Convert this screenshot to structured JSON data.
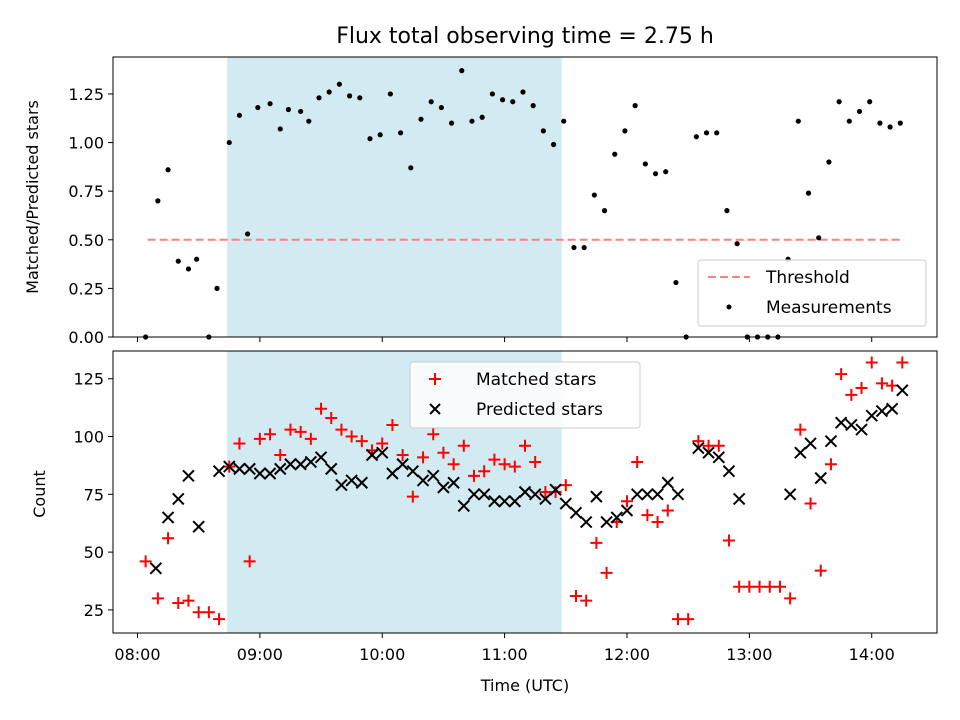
{
  "chart_data": [
    {
      "type": "scatter",
      "title": "Flux total observing time = 2.75 h",
      "ylabel": "Matched/Predicted stars",
      "xlim": [
        "07:48",
        "14:32"
      ],
      "ylim": [
        0.0,
        1.44
      ],
      "yticks": [
        "0.00",
        "0.25",
        "0.50",
        "0.75",
        "1.00",
        "1.25"
      ],
      "grid": false,
      "legend_position": "lower-right",
      "shaded_region": {
        "start": "08:44",
        "end": "11:28",
        "color": "#add8e6"
      },
      "threshold": {
        "name": "Threshold",
        "value": 0.5,
        "x_start": "08:05",
        "x_end": "14:15",
        "color": "#ff8080"
      },
      "series": [
        {
          "name": "Measurements",
          "marker": "dot",
          "color": "#000000",
          "points": [
            [
              "08:04",
              0.0
            ],
            [
              "08:10",
              0.7
            ],
            [
              "08:15",
              0.86
            ],
            [
              "08:20",
              0.39
            ],
            [
              "08:25",
              0.35
            ],
            [
              "08:29",
              0.4
            ],
            [
              "08:35",
              0.0
            ],
            [
              "08:39",
              0.25
            ],
            [
              "08:45",
              1.0
            ],
            [
              "08:50",
              1.14
            ],
            [
              "08:54",
              0.53
            ],
            [
              "08:59",
              1.18
            ],
            [
              "09:05",
              1.2
            ],
            [
              "09:10",
              1.07
            ],
            [
              "09:14",
              1.17
            ],
            [
              "09:20",
              1.16
            ],
            [
              "09:24",
              1.11
            ],
            [
              "09:29",
              1.23
            ],
            [
              "09:34",
              1.26
            ],
            [
              "09:39",
              1.3
            ],
            [
              "09:44",
              1.24
            ],
            [
              "09:49",
              1.23
            ],
            [
              "09:54",
              1.02
            ],
            [
              "09:59",
              1.04
            ],
            [
              "10:04",
              1.25
            ],
            [
              "10:09",
              1.05
            ],
            [
              "10:14",
              0.87
            ],
            [
              "10:19",
              1.12
            ],
            [
              "10:24",
              1.21
            ],
            [
              "10:29",
              1.18
            ],
            [
              "10:34",
              1.1
            ],
            [
              "10:39",
              1.37
            ],
            [
              "10:44",
              1.11
            ],
            [
              "10:49",
              1.13
            ],
            [
              "10:54",
              1.25
            ],
            [
              "10:59",
              1.22
            ],
            [
              "11:04",
              1.21
            ],
            [
              "11:09",
              1.26
            ],
            [
              "11:14",
              1.19
            ],
            [
              "11:19",
              1.06
            ],
            [
              "11:24",
              0.99
            ],
            [
              "11:29",
              1.11
            ],
            [
              "11:34",
              0.46
            ],
            [
              "11:39",
              0.46
            ],
            [
              "11:44",
              0.73
            ],
            [
              "11:49",
              0.65
            ],
            [
              "11:54",
              0.94
            ],
            [
              "11:59",
              1.06
            ],
            [
              "12:04",
              1.19
            ],
            [
              "12:09",
              0.89
            ],
            [
              "12:14",
              0.84
            ],
            [
              "12:19",
              0.85
            ],
            [
              "12:24",
              0.28
            ],
            [
              "12:29",
              0.0
            ],
            [
              "12:34",
              1.03
            ],
            [
              "12:39",
              1.05
            ],
            [
              "12:44",
              1.05
            ],
            [
              "12:49",
              0.65
            ],
            [
              "12:54",
              0.48
            ],
            [
              "12:59",
              0.0
            ],
            [
              "13:04",
              0.0
            ],
            [
              "13:09",
              0.0
            ],
            [
              "13:14",
              0.0
            ],
            [
              "13:19",
              0.4
            ],
            [
              "13:24",
              1.11
            ],
            [
              "13:29",
              0.74
            ],
            [
              "13:34",
              0.51
            ],
            [
              "13:39",
              0.9
            ],
            [
              "13:44",
              1.21
            ],
            [
              "13:49",
              1.11
            ],
            [
              "13:54",
              1.16
            ],
            [
              "13:59",
              1.21
            ],
            [
              "14:04",
              1.1
            ],
            [
              "14:09",
              1.08
            ],
            [
              "14:14",
              1.1
            ]
          ]
        }
      ]
    },
    {
      "type": "scatter",
      "xlabel": "Time (UTC)",
      "ylabel": "Count",
      "xlim": [
        "07:48",
        "14:32"
      ],
      "xticks": [
        "08:00",
        "09:00",
        "10:00",
        "11:00",
        "12:00",
        "13:00",
        "14:00"
      ],
      "ylim": [
        15,
        137
      ],
      "yticks": [
        25,
        50,
        75,
        100,
        125
      ],
      "grid": false,
      "legend_position": "upper-center",
      "shaded_region": {
        "start": "08:44",
        "end": "11:28",
        "color": "#add8e6"
      },
      "series": [
        {
          "name": "Matched stars",
          "marker": "plus",
          "color": "#ff0000",
          "points": [
            [
              "08:04",
              46
            ],
            [
              "08:10",
              30
            ],
            [
              "08:15",
              56
            ],
            [
              "08:20",
              28
            ],
            [
              "08:25",
              29
            ],
            [
              "08:30",
              24
            ],
            [
              "08:35",
              24
            ],
            [
              "08:40",
              21
            ],
            [
              "08:45",
              87
            ],
            [
              "08:50",
              97
            ],
            [
              "08:55",
              46
            ],
            [
              "09:00",
              99
            ],
            [
              "09:05",
              101
            ],
            [
              "09:10",
              92
            ],
            [
              "09:15",
              103
            ],
            [
              "09:20",
              102
            ],
            [
              "09:25",
              99
            ],
            [
              "09:30",
              112
            ],
            [
              "09:35",
              108
            ],
            [
              "09:40",
              103
            ],
            [
              "09:45",
              100
            ],
            [
              "09:50",
              98
            ],
            [
              "09:55",
              94
            ],
            [
              "10:00",
              97
            ],
            [
              "10:05",
              105
            ],
            [
              "10:10",
              92
            ],
            [
              "10:15",
              74
            ],
            [
              "10:20",
              91
            ],
            [
              "10:25",
              101
            ],
            [
              "10:30",
              93
            ],
            [
              "10:35",
              88
            ],
            [
              "10:40",
              96
            ],
            [
              "10:45",
              83
            ],
            [
              "10:50",
              85
            ],
            [
              "10:55",
              90
            ],
            [
              "11:00",
              88
            ],
            [
              "11:05",
              87
            ],
            [
              "11:10",
              96
            ],
            [
              "11:15",
              89
            ],
            [
              "11:20",
              76
            ],
            [
              "11:25",
              76
            ],
            [
              "11:30",
              79
            ],
            [
              "11:35",
              31
            ],
            [
              "11:40",
              29
            ],
            [
              "11:45",
              54
            ],
            [
              "11:50",
              41
            ],
            [
              "11:55",
              63
            ],
            [
              "12:00",
              72
            ],
            [
              "12:05",
              89
            ],
            [
              "12:10",
              66
            ],
            [
              "12:15",
              63
            ],
            [
              "12:20",
              68
            ],
            [
              "12:25",
              21
            ],
            [
              "12:30",
              21
            ],
            [
              "12:35",
              98
            ],
            [
              "12:40",
              96
            ],
            [
              "12:45",
              96
            ],
            [
              "12:50",
              55
            ],
            [
              "12:55",
              35
            ],
            [
              "13:00",
              35
            ],
            [
              "13:05",
              35
            ],
            [
              "13:10",
              35
            ],
            [
              "13:15",
              35
            ],
            [
              "13:20",
              30
            ],
            [
              "13:25",
              103
            ],
            [
              "13:30",
              71
            ],
            [
              "13:35",
              42
            ],
            [
              "13:40",
              88
            ],
            [
              "13:45",
              127
            ],
            [
              "13:50",
              118
            ],
            [
              "13:55",
              121
            ],
            [
              "14:00",
              132
            ],
            [
              "14:05",
              123
            ],
            [
              "14:10",
              122
            ],
            [
              "14:15",
              132
            ]
          ]
        },
        {
          "name": "Predicted stars",
          "marker": "x",
          "color": "#000000",
          "points": [
            [
              "08:09",
              43
            ],
            [
              "08:15",
              65
            ],
            [
              "08:20",
              73
            ],
            [
              "08:25",
              83
            ],
            [
              "08:30",
              61
            ],
            [
              "08:40",
              85
            ],
            [
              "08:45",
              87
            ],
            [
              "08:50",
              86
            ],
            [
              "08:55",
              86
            ],
            [
              "09:00",
              84
            ],
            [
              "09:05",
              84
            ],
            [
              "09:10",
              86
            ],
            [
              "09:15",
              88
            ],
            [
              "09:20",
              88
            ],
            [
              "09:25",
              89
            ],
            [
              "09:30",
              91
            ],
            [
              "09:35",
              86
            ],
            [
              "09:40",
              79
            ],
            [
              "09:45",
              81
            ],
            [
              "09:50",
              80
            ],
            [
              "09:55",
              92
            ],
            [
              "10:00",
              93
            ],
            [
              "10:05",
              84
            ],
            [
              "10:10",
              88
            ],
            [
              "10:15",
              85
            ],
            [
              "10:20",
              81
            ],
            [
              "10:25",
              83
            ],
            [
              "10:30",
              78
            ],
            [
              "10:35",
              80
            ],
            [
              "10:40",
              70
            ],
            [
              "10:45",
              75
            ],
            [
              "10:50",
              75
            ],
            [
              "10:55",
              72
            ],
            [
              "11:00",
              72
            ],
            [
              "11:05",
              72
            ],
            [
              "11:10",
              76
            ],
            [
              "11:15",
              75
            ],
            [
              "11:20",
              73
            ],
            [
              "11:25",
              77
            ],
            [
              "11:30",
              71
            ],
            [
              "11:35",
              67
            ],
            [
              "11:40",
              63
            ],
            [
              "11:45",
              74
            ],
            [
              "11:50",
              63
            ],
            [
              "11:55",
              65
            ],
            [
              "12:00",
              68
            ],
            [
              "12:05",
              75
            ],
            [
              "12:10",
              75
            ],
            [
              "12:15",
              75
            ],
            [
              "12:20",
              80
            ],
            [
              "12:25",
              75
            ],
            [
              "12:35",
              95
            ],
            [
              "12:40",
              93
            ],
            [
              "12:45",
              91
            ],
            [
              "12:50",
              85
            ],
            [
              "12:55",
              73
            ],
            [
              "13:20",
              75
            ],
            [
              "13:25",
              93
            ],
            [
              "13:30",
              97
            ],
            [
              "13:35",
              82
            ],
            [
              "13:40",
              98
            ],
            [
              "13:45",
              106
            ],
            [
              "13:50",
              105
            ],
            [
              "13:55",
              103
            ],
            [
              "14:00",
              109
            ],
            [
              "14:05",
              111
            ],
            [
              "14:10",
              112
            ],
            [
              "14:15",
              120
            ]
          ]
        }
      ]
    }
  ]
}
